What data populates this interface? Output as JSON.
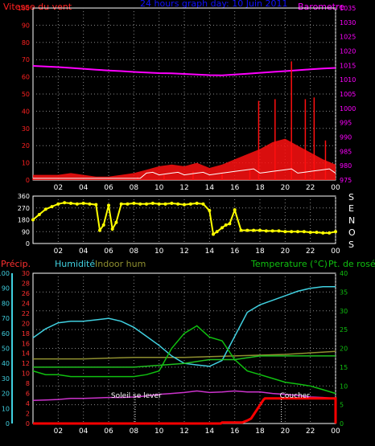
{
  "panels": {
    "wind": {
      "title": "24 hours graph day: 10 Juin 2011",
      "left_label": "Vitesse du vent",
      "right_label": "Barometre",
      "left_ticks": [
        "0",
        "10",
        "20",
        "30",
        "40",
        "50",
        "60",
        "70",
        "80",
        "90",
        "100"
      ],
      "right_ticks": [
        "975",
        "980",
        "985",
        "990",
        "995",
        "1000",
        "1005",
        "1010",
        "1015",
        "1020",
        "1025",
        "1030",
        "1035"
      ]
    },
    "direction": {
      "left_ticks": [
        "0",
        "90",
        "180",
        "270",
        "360"
      ],
      "compass": [
        "S",
        "E",
        "N",
        "O",
        "S"
      ]
    },
    "temp": {
      "label_precip": "Précip.",
      "label_humidity": "Humidité",
      "label_indoor": "Indoor hum",
      "label_temp": "Temperature (°C)",
      "label_dew": "Pt. de rosée",
      "humidity_ticks": [
        "0",
        "10",
        "20",
        "30",
        "40",
        "50",
        "60",
        "70",
        "80",
        "90",
        "100"
      ],
      "precip_ticks": [
        "0",
        "2",
        "4",
        "6",
        "8",
        "10",
        "12",
        "14",
        "16",
        "18",
        "20",
        "22",
        "24",
        "26",
        "28",
        "30"
      ],
      "temp_ticks": [
        "0",
        "5",
        "10",
        "15",
        "20",
        "25",
        "30",
        "35",
        "40"
      ],
      "sunrise_label": "Soleil se lever",
      "sunset_label": "Coucher"
    }
  },
  "x_ticks": [
    "02",
    "04",
    "06",
    "08",
    "10",
    "12",
    "14",
    "16",
    "18",
    "20",
    "22",
    "00"
  ],
  "colors": {
    "wind": "#ff1010",
    "gust": "#ffffff",
    "pressure": "#ff00ff",
    "direction": "#ffff00",
    "humidity": "#40d0e0",
    "indoor": "#909030",
    "temp": "#10c010",
    "dew": "#20c020",
    "precip": "#ff0000",
    "uv": "#cc33cc",
    "title": "#1010ff",
    "axis_left_top": "#ff2020",
    "axis_right_top": "#ff00ff",
    "axis_humidity": "#40d0e0",
    "axis_precip": "#ff3030",
    "axis_temp": "#10c010",
    "grid": "#888888"
  },
  "chart_data": [
    {
      "type": "line",
      "title": "24 hours graph day: 10 Juin 2011",
      "xlabel": "",
      "ylabel": "Vitesse du vent",
      "x_range": [
        0,
        24
      ],
      "ylim": [
        0,
        100
      ],
      "y2label": "Barometre",
      "y2lim": [
        975,
        1035
      ],
      "series": [
        {
          "name": "Barometre",
          "axis": "right",
          "x": [
            0,
            1,
            2,
            3,
            4,
            5,
            6,
            7,
            8,
            9,
            10,
            11,
            12,
            13,
            14,
            15,
            16,
            17,
            18,
            19,
            20,
            21,
            22,
            23,
            24
          ],
          "values": [
            1014.8,
            1014.6,
            1014.4,
            1014.1,
            1013.8,
            1013.5,
            1013.2,
            1013.0,
            1012.7,
            1012.5,
            1012.3,
            1012.2,
            1012.0,
            1011.8,
            1011.6,
            1011.5,
            1011.8,
            1012.1,
            1012.4,
            1012.7,
            1013.0,
            1013.3,
            1013.6,
            1013.9,
            1014.1
          ]
        },
        {
          "name": "Vitesse du vent",
          "axis": "left",
          "x": [
            0,
            1,
            2,
            3,
            4,
            5,
            6,
            7,
            8,
            9,
            10,
            11,
            12,
            13,
            14,
            15,
            16,
            17,
            18,
            19,
            20,
            21,
            22,
            23,
            24
          ],
          "values": [
            3,
            3,
            3,
            4,
            3,
            2,
            2,
            3,
            4,
            6,
            8,
            9,
            8,
            10,
            7,
            9,
            12,
            15,
            18,
            22,
            24,
            20,
            16,
            12,
            9
          ]
        },
        {
          "name": "Rafales",
          "axis": "left",
          "x": [
            0,
            8.3,
            10.4,
            12.7,
            15,
            17.2,
            17.9,
            19.2,
            20.5,
            21.6,
            22.3,
            23.2
          ],
          "values": [
            1,
            2,
            3,
            5,
            4,
            6,
            46,
            47,
            69,
            47,
            48,
            23
          ]
        }
      ]
    },
    {
      "type": "scatter",
      "title": "",
      "xlabel": "",
      "ylabel": "",
      "ylim": [
        0,
        360
      ],
      "x": [
        0,
        0.5,
        1,
        1.5,
        2,
        2.5,
        3,
        3.5,
        4,
        4.5,
        5,
        5.3,
        5.6,
        6,
        6.3,
        6.6,
        7,
        7.5,
        8,
        8.5,
        9,
        9.5,
        10,
        10.5,
        11,
        11.5,
        12,
        12.5,
        13,
        13.5,
        14,
        14.3,
        14.6,
        15,
        15.3,
        15.6,
        16,
        16.5,
        17,
        17.5,
        18,
        18.5,
        19,
        19.5,
        20,
        20.5,
        21,
        21.5,
        22,
        22.5,
        23,
        23.5,
        24
      ],
      "values": [
        180,
        220,
        260,
        280,
        300,
        310,
        305,
        300,
        305,
        300,
        295,
        100,
        140,
        290,
        110,
        160,
        300,
        300,
        305,
        300,
        300,
        305,
        300,
        300,
        305,
        300,
        295,
        300,
        305,
        300,
        250,
        70,
        90,
        120,
        140,
        150,
        255,
        100,
        100,
        100,
        100,
        95,
        95,
        95,
        90,
        90,
        90,
        90,
        85,
        85,
        80,
        80,
        90
      ]
    },
    {
      "type": "line",
      "title": "",
      "xlabel": "",
      "ylabel": "Humidité",
      "x_range": [
        0,
        24
      ],
      "ylim": [
        0,
        100
      ],
      "y2label": "Temperature (°C)",
      "y2lim": [
        0,
        40
      ],
      "y3label": "Précip.",
      "y3lim": [
        0,
        30
      ],
      "series": [
        {
          "name": "Humidité",
          "axis": "humidity",
          "x": [
            0,
            1,
            2,
            3,
            4,
            5,
            6,
            7,
            8,
            9,
            10,
            11,
            12,
            13,
            14,
            15,
            16,
            17,
            18,
            19,
            20,
            21,
            22,
            23,
            24
          ],
          "values": [
            57,
            63,
            67,
            68,
            68,
            69,
            70,
            68,
            64,
            58,
            52,
            45,
            40,
            39,
            38,
            42,
            58,
            74,
            79,
            82,
            85,
            88,
            90,
            91,
            91
          ]
        },
        {
          "name": "Indoor hum",
          "axis": "humidity",
          "x": [
            0,
            4,
            8,
            12,
            16,
            20,
            24
          ],
          "values": [
            43,
            43,
            44,
            44,
            45,
            46,
            48
          ]
        },
        {
          "name": "Temperature (°C)",
          "axis": "temp",
          "x": [
            0,
            1,
            2,
            3,
            4,
            5,
            6,
            7,
            8,
            9,
            10,
            11,
            12,
            13,
            14,
            15,
            16,
            17,
            18,
            19,
            20,
            21,
            22,
            23,
            24
          ],
          "values": [
            14,
            13,
            13,
            12.5,
            12.5,
            12.5,
            12.5,
            12.5,
            12.5,
            13,
            14,
            20,
            24,
            26,
            23,
            22,
            17,
            14,
            13,
            12,
            11,
            10.5,
            10,
            9,
            8
          ]
        },
        {
          "name": "Pt. de rosée",
          "axis": "temp",
          "x": [
            0,
            4,
            8,
            12,
            14,
            16,
            18,
            20,
            22,
            24
          ],
          "values": [
            15,
            15,
            15,
            16,
            17,
            17,
            18,
            18,
            18,
            18
          ]
        },
        {
          "name": "Précip.",
          "axis": "precip",
          "x": [
            0,
            14.9,
            15,
            16.6,
            17,
            17.3,
            18.3,
            18.4,
            24,
            24
          ],
          "values": [
            0,
            0,
            0.2,
            0.2,
            0.6,
            1,
            4.8,
            5,
            5,
            0
          ]
        },
        {
          "name": "",
          "axis": "precip",
          "x": [
            0,
            1,
            2,
            3,
            4,
            5,
            6,
            7,
            8,
            9,
            10,
            11,
            12,
            13,
            14,
            15,
            16,
            17,
            18,
            19,
            20,
            21,
            22,
            23,
            24
          ],
          "values": [
            4.6,
            4.7,
            4.8,
            5,
            5,
            5.1,
            5.2,
            5.2,
            5.3,
            5.5,
            5.8,
            6,
            6.2,
            6.5,
            6.2,
            6.3,
            6.5,
            6.3,
            6.3,
            6,
            5.8,
            5.6,
            5.3,
            5.2,
            5
          ]
        }
      ],
      "sunrise": "Soleil se lever",
      "sunset": "Coucher"
    }
  ]
}
